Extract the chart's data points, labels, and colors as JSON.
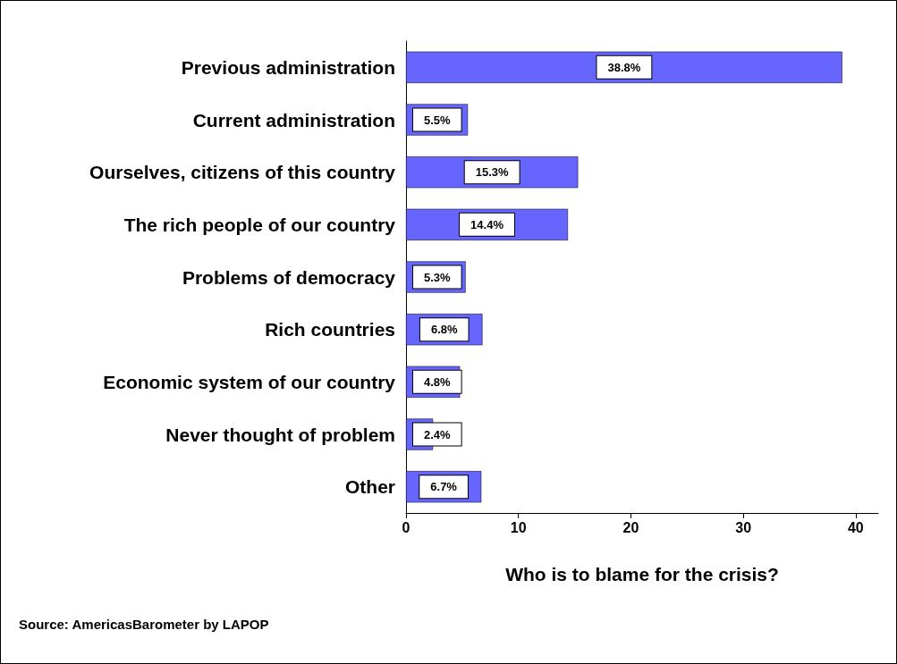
{
  "chart_data": {
    "type": "bar",
    "orientation": "horizontal",
    "xlabel": "Who is to blame for the crisis?",
    "categories": [
      "Previous administration",
      "Current administration",
      "Ourselves, citizens of this country",
      "The rich people of our country",
      "Problems of democracy",
      "Rich countries",
      "Economic system of our country",
      "Never thought of problem",
      "Other"
    ],
    "values": [
      38.8,
      5.5,
      15.3,
      14.4,
      5.3,
      6.8,
      4.8,
      2.4,
      6.7
    ],
    "value_labels": [
      "38.8%",
      "5.5%",
      "15.3%",
      "14.4%",
      "5.3%",
      "6.8%",
      "4.8%",
      "2.4%",
      "6.7%"
    ],
    "color": "#6666ff",
    "xlim": [
      0,
      42
    ],
    "xticks": [
      0,
      10,
      20,
      30,
      40
    ],
    "grid": false,
    "annotations": [
      "Source: AmericasBarometer by LAPOP"
    ]
  }
}
